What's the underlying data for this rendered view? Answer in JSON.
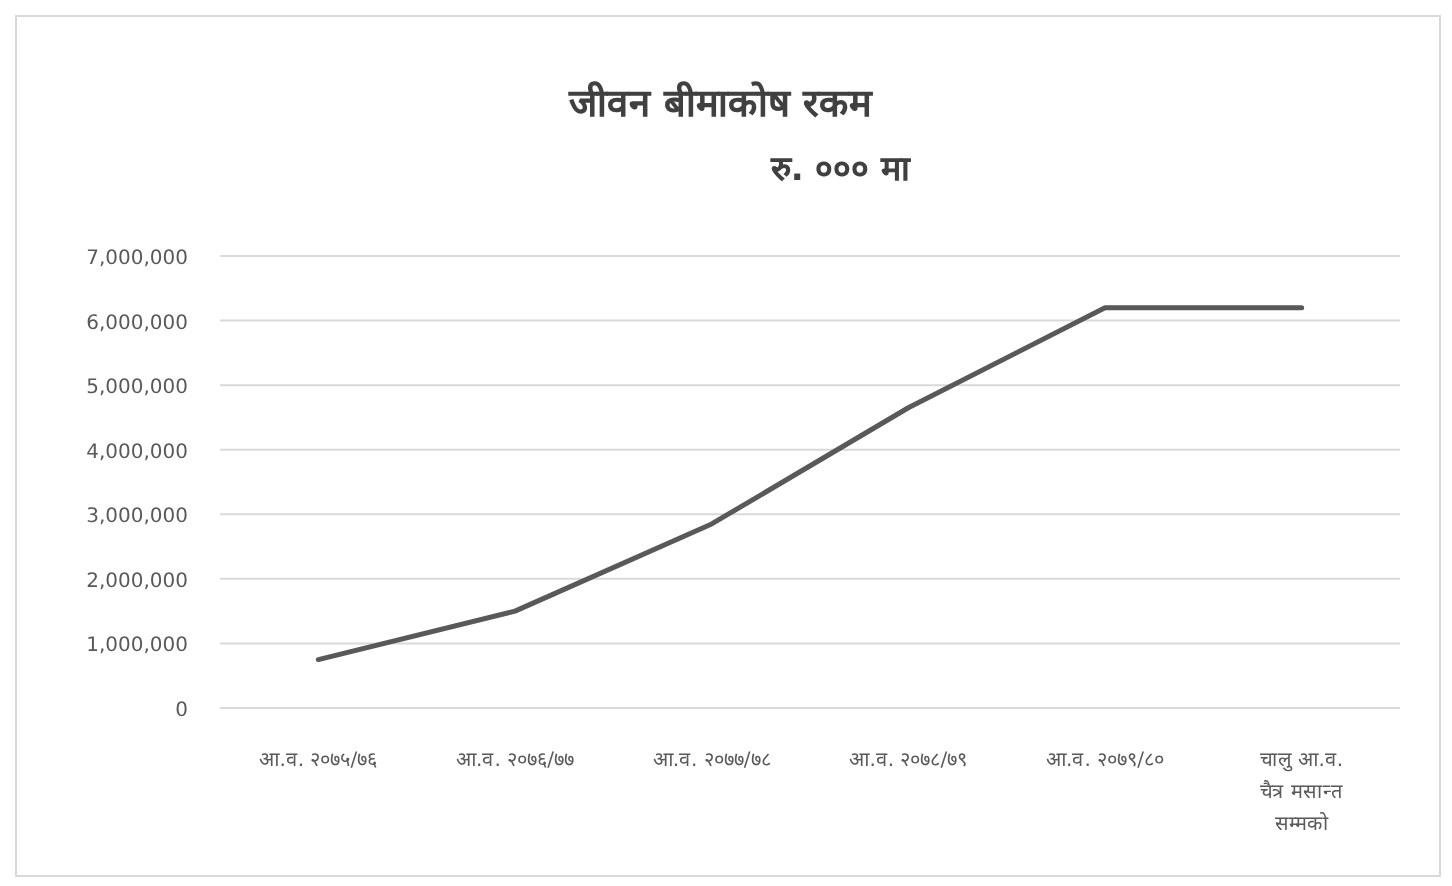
{
  "chart_data": {
    "type": "line",
    "title": "जीवन बीमाकोष रकम",
    "subtitle": "रु. ००० मा",
    "categories": [
      "आ.व. २०७५/७६",
      "आ.व. २०७६/७७",
      "आ.व. २०७७/७८",
      "आ.व. २०७८/७९",
      "आ.व. २०७९/८०",
      "चालु आ.व. चैत्र मसान्त सम्मको"
    ],
    "series": [
      {
        "color": "#595959",
        "values": [
          750000,
          1500000,
          2850000,
          4650000,
          6200000,
          6200000
        ]
      }
    ],
    "ylim": [
      0,
      7000000
    ],
    "yticks": [
      {
        "value": 0,
        "label": "0"
      },
      {
        "value": 1000000,
        "label": "1,000,000"
      },
      {
        "value": 2000000,
        "label": "2,000,000"
      },
      {
        "value": 3000000,
        "label": "3,000,000"
      },
      {
        "value": 4000000,
        "label": "4,000,000"
      },
      {
        "value": 5000000,
        "label": "5,000,000"
      },
      {
        "value": 6000000,
        "label": "6,000,000"
      },
      {
        "value": 7000000,
        "label": "7,000,000"
      }
    ],
    "grid": "y",
    "marker": "none",
    "line_style": "solid"
  }
}
